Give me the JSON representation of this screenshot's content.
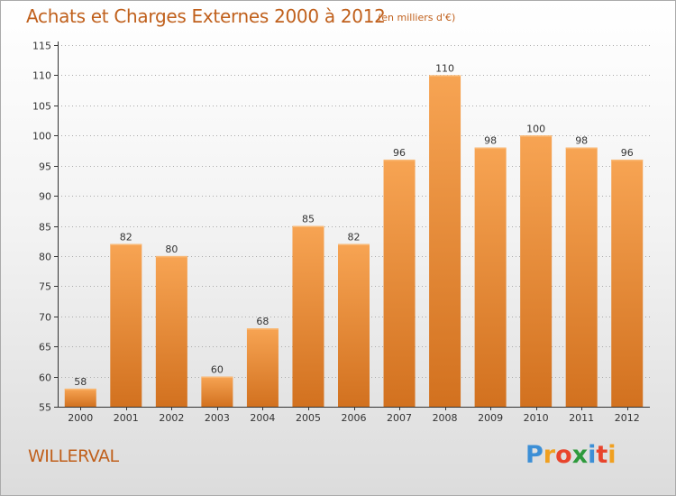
{
  "header": {
    "title": "Achats et Charges Externes 2000 à 2012",
    "subtitle": "(en milliers d'€)"
  },
  "footer": {
    "place": "WILLERVAL",
    "brand": "Proxiti",
    "brand_letters": [
      {
        "ch": "P",
        "color": "#3c8fd6"
      },
      {
        "ch": "r",
        "color": "#f0a020"
      },
      {
        "ch": "o",
        "color": "#e8442c"
      },
      {
        "ch": "x",
        "color": "#2e9a3c"
      },
      {
        "ch": "i",
        "color": "#3c8fd6"
      },
      {
        "ch": "t",
        "color": "#e8442c"
      },
      {
        "ch": "i",
        "color": "#f0a020"
      }
    ]
  },
  "colors": {
    "title": "#c0601c",
    "bar_top": "#f7a453",
    "bar_bottom": "#d2711f",
    "grid": "#aaaaaa",
    "axis": "#333333"
  },
  "chart_data": {
    "type": "bar",
    "title": "Achats et Charges Externes 2000 à 2012",
    "subtitle": "(en milliers d'€)",
    "categories": [
      "2000",
      "2001",
      "2002",
      "2003",
      "2004",
      "2005",
      "2006",
      "2007",
      "2008",
      "2009",
      "2010",
      "2011",
      "2012"
    ],
    "values": [
      58,
      82,
      80,
      60,
      68,
      85,
      82,
      96,
      110,
      98,
      100,
      98,
      96
    ],
    "data_labels": [
      "58",
      "82",
      "80",
      "60",
      "68",
      "85",
      "82",
      "96",
      "110",
      "98",
      "100",
      "98",
      "96"
    ],
    "ylim": [
      55,
      115
    ],
    "yticks": [
      55,
      60,
      65,
      70,
      75,
      80,
      85,
      90,
      95,
      100,
      105,
      110,
      115
    ],
    "grid": true,
    "legend": "none"
  }
}
